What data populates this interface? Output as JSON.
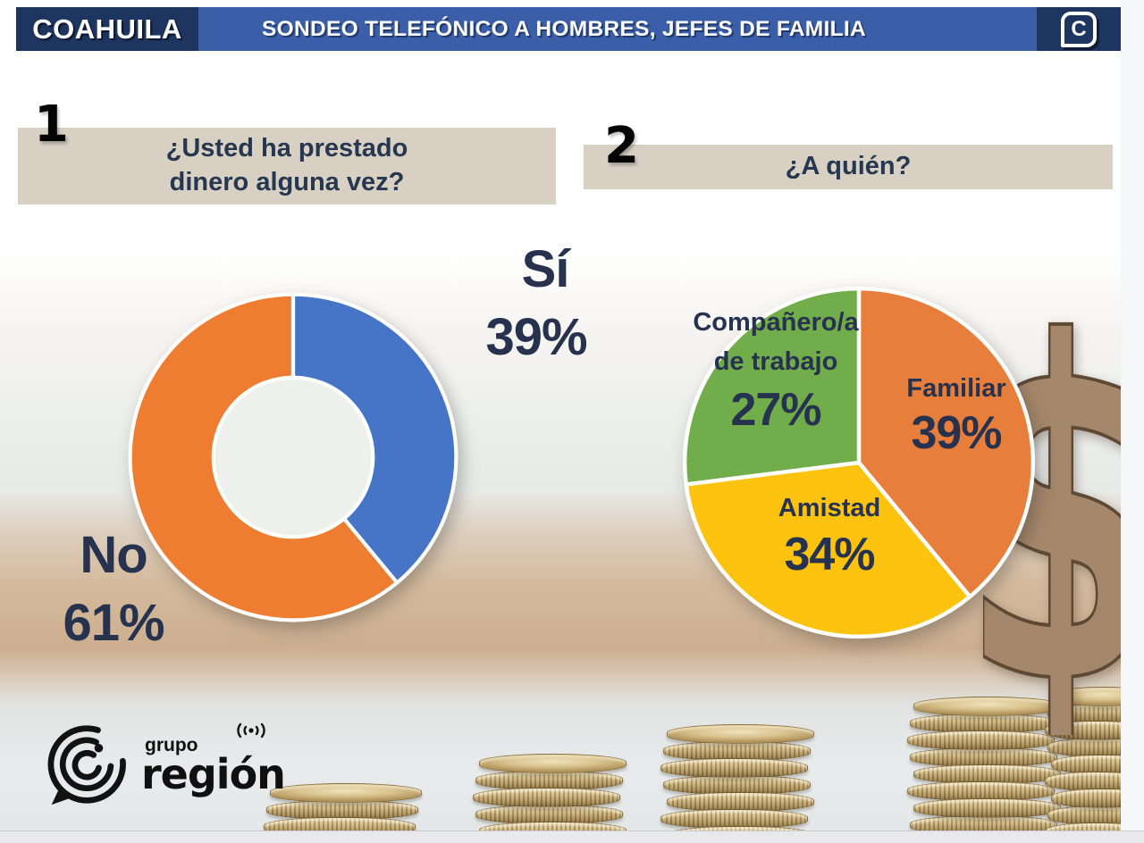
{
  "header": {
    "region_label": "COAHUILA",
    "title": "SONDEO TELEFÓNICO A HOMBRES, JEFES DE FAMILIA",
    "corner_logo_letter": "C"
  },
  "questions": [
    {
      "number": "1",
      "line1": "¿Usted ha prestado",
      "line2": "dinero alguna vez?"
    },
    {
      "number": "2",
      "line1": "¿A quién?"
    }
  ],
  "chart_data": [
    {
      "type": "pie",
      "variant": "donut",
      "title": "¿Usted ha prestado dinero alguna vez?",
      "start_angle": "top",
      "direction": "clockwise",
      "hole_color": "#edf0ec",
      "slices": [
        {
          "label": "Sí",
          "value": 39,
          "display": "39%",
          "color": "#4675c8"
        },
        {
          "label": "No",
          "value": 61,
          "display": "61%",
          "color": "#ee7d31"
        }
      ]
    },
    {
      "type": "pie",
      "title": "¿A quién?",
      "start_angle": "top",
      "direction": "clockwise",
      "slices": [
        {
          "label": "Familiar",
          "value": 39,
          "display": "39%",
          "color": "#e87e3b"
        },
        {
          "label": "Amistad",
          "value": 34,
          "display": "34%",
          "color": "#fdc30e"
        },
        {
          "label": "Compañero/a de trabajo",
          "label_line1": "Compañero/a",
          "label_line2": "de trabajo",
          "value": 27,
          "display": "27%",
          "color": "#72ad4b"
        }
      ]
    }
  ],
  "footer_logo": {
    "top": "grupo",
    "name": "región"
  },
  "colors": {
    "header_navy": "#1e3560",
    "header_blue": "#3a5fa8",
    "question_beige": "#d7d0c3",
    "text_navy": "#26324e"
  }
}
